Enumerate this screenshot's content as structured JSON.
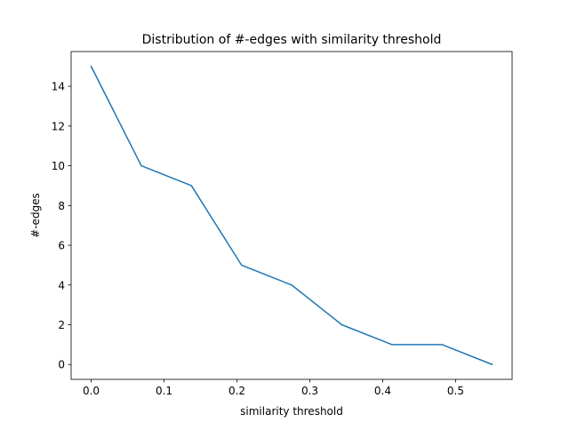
{
  "chart_data": {
    "type": "line",
    "title": "Distribution of #-edges with similarity threshold",
    "xlabel": "similarity threshold",
    "ylabel": "#-edges",
    "xlim": [
      -0.0275,
      0.5775
    ],
    "ylim": [
      -0.75,
      15.75
    ],
    "xticks": [
      0.0,
      0.1,
      0.2,
      0.3,
      0.4,
      0.5
    ],
    "xtick_labels": [
      "0.0",
      "0.1",
      "0.2",
      "0.3",
      "0.4",
      "0.5"
    ],
    "yticks": [
      0,
      2,
      4,
      6,
      8,
      10,
      12,
      14
    ],
    "ytick_labels": [
      "0",
      "2",
      "4",
      "6",
      "8",
      "10",
      "12",
      "14"
    ],
    "grid": false,
    "series": [
      {
        "color": "#1f77b4",
        "x": [
          0.0,
          0.0688,
          0.1375,
          0.2063,
          0.275,
          0.3438,
          0.4125,
          0.4813,
          0.55
        ],
        "y": [
          15,
          10,
          9,
          5,
          4,
          2,
          1,
          1,
          0
        ]
      }
    ]
  }
}
